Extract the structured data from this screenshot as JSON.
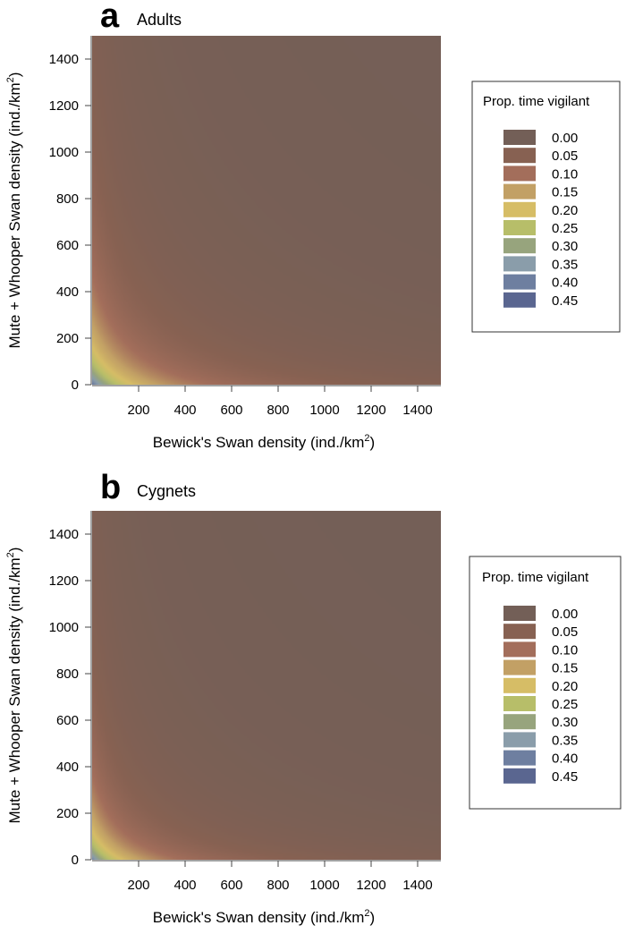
{
  "chart_data": [
    {
      "type": "heatmap",
      "panel_letter": "a",
      "title": "Adults",
      "xlabel_main": "Bewick's Swan density (ind./km",
      "xlabel_sup": "2",
      "xlabel_end": ")",
      "ylabel_main": "Mute + Whooper Swan density (ind./km",
      "ylabel_sup": "2",
      "ylabel_end": ")",
      "xlim": [
        0,
        1500
      ],
      "ylim": [
        0,
        1500
      ],
      "x_ticks": [
        200,
        400,
        600,
        800,
        1000,
        1200,
        1400
      ],
      "y_ticks": [
        0,
        200,
        400,
        600,
        800,
        1000,
        1200,
        1400
      ],
      "x_tick_labels": [
        "200",
        "400",
        "600",
        "800",
        "1000",
        "1200",
        "1400"
      ],
      "y_tick_labels": [
        "0",
        "200",
        "400",
        "600",
        "800",
        "1000",
        "1200",
        "1400"
      ],
      "surface": {
        "max_vigilance": 0.42,
        "half_x": 160,
        "half_y": 150
      },
      "legend": {
        "title": "Prop. time vigilant",
        "placement": "right",
        "levels": [
          {
            "label": "0.00",
            "value": 0.0,
            "color": "#735F57"
          },
          {
            "label": "0.05",
            "value": 0.05,
            "color": "#876152"
          },
          {
            "label": "0.10",
            "value": 0.1,
            "color": "#A36E5B"
          },
          {
            "label": "0.15",
            "value": 0.15,
            "color": "#C2A065"
          },
          {
            "label": "0.20",
            "value": 0.2,
            "color": "#D6BD66"
          },
          {
            "label": "0.25",
            "value": 0.25,
            "color": "#B7BE69"
          },
          {
            "label": "0.30",
            "value": 0.3,
            "color": "#97A47D"
          },
          {
            "label": "0.35",
            "value": 0.35,
            "color": "#8A9DAA"
          },
          {
            "label": "0.40",
            "value": 0.4,
            "color": "#6E7FA0"
          },
          {
            "label": "0.45",
            "value": 0.45,
            "color": "#5A6690"
          }
        ]
      }
    },
    {
      "type": "heatmap",
      "panel_letter": "b",
      "title": "Cygnets",
      "xlabel_main": "Bewick's Swan density (ind./km",
      "xlabel_sup": "2",
      "xlabel_end": ")",
      "ylabel_main": "Mute + Whooper Swan density (ind./km",
      "ylabel_sup": "2",
      "ylabel_end": ")",
      "xlim": [
        0,
        1500
      ],
      "ylim": [
        0,
        1500
      ],
      "x_ticks": [
        200,
        400,
        600,
        800,
        1000,
        1200,
        1400
      ],
      "y_ticks": [
        0,
        200,
        400,
        600,
        800,
        1000,
        1200,
        1400
      ],
      "x_tick_labels": [
        "200",
        "400",
        "600",
        "800",
        "1000",
        "1200",
        "1400"
      ],
      "y_tick_labels": [
        "0",
        "200",
        "400",
        "600",
        "800",
        "1000",
        "1200",
        "1400"
      ],
      "surface": {
        "max_vigilance": 0.4,
        "half_x": 130,
        "half_y": 125
      },
      "legend": {
        "title": "Prop. time vigilant",
        "placement": "right",
        "levels": [
          {
            "label": "0.00",
            "value": 0.0,
            "color": "#735F57"
          },
          {
            "label": "0.05",
            "value": 0.05,
            "color": "#876152"
          },
          {
            "label": "0.10",
            "value": 0.1,
            "color": "#A36E5B"
          },
          {
            "label": "0.15",
            "value": 0.15,
            "color": "#C2A065"
          },
          {
            "label": "0.20",
            "value": 0.2,
            "color": "#D6BD66"
          },
          {
            "label": "0.25",
            "value": 0.25,
            "color": "#B7BE69"
          },
          {
            "label": "0.30",
            "value": 0.3,
            "color": "#97A47D"
          },
          {
            "label": "0.35",
            "value": 0.35,
            "color": "#8A9DAA"
          },
          {
            "label": "0.40",
            "value": 0.4,
            "color": "#6E7FA0"
          },
          {
            "label": "0.45",
            "value": 0.45,
            "color": "#5A6690"
          }
        ]
      }
    }
  ]
}
